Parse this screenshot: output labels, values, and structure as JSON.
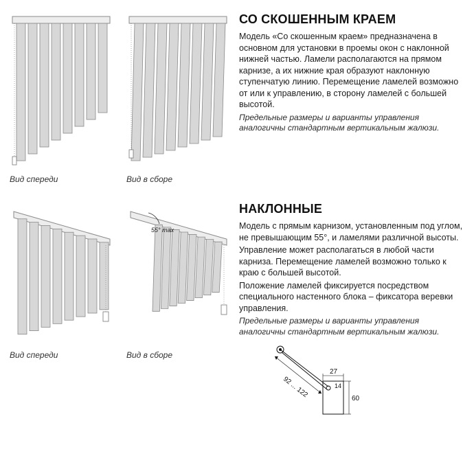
{
  "section1": {
    "heading": "СО СКОШЕННЫМ КРАЕМ",
    "para1": "Модель «Со скошенным краем» предназначена в основном для установки в проемы окон с наклонной нижней частью. Ламели располагаются на прямом карнизе, а их нижние края образуют наклонную ступенчатую линию. Перемещение ламелей возможно от или к управлению, в сторону ламелей с большей высотой.",
    "note": "Предельные размеры и варианты управления аналогичны стандартным вертикальным жалюзи.",
    "cap_front": "Вид спереди",
    "cap_assy": "Вид в сборе",
    "fig": {
      "rail_color": "#ededed",
      "rail_stroke": "#8a8a8a",
      "slat_color": "#d7d7d7",
      "slat_stroke": "#8a8a8a",
      "slat_count": 8,
      "slat_w": 13,
      "slat_gap": 4,
      "heights_front": [
        200,
        190,
        180,
        170,
        160,
        150,
        140,
        130
      ],
      "heights_assy": [
        200,
        195,
        190,
        185,
        180,
        175,
        170,
        165
      ]
    }
  },
  "section2": {
    "heading": "НАКЛОННЫЕ",
    "para1": "Модель с прямым карнизом, установленным под углом, не превышающим 55°, и ламелями различной высоты.",
    "para2": "Управление может располагаться в любой части карниза. Перемещение ламелей возможно только к краю с большей высотой.",
    "para3": "Положение ламелей фиксируется посредством специального настенного блока – фиксатора веревки управления.",
    "note": "Предельные размеры и варианты управления аналогичны стандартным вертикальным жалюзи.",
    "cap_front": "Вид спереди",
    "cap_assy": "Вид в сборе",
    "angle_label": "55° max",
    "fig": {
      "rail_color": "#ededed",
      "rail_stroke": "#8a8a8a",
      "slat_color": "#d7d7d7",
      "slat_stroke": "#8a8a8a",
      "slat_count": 8,
      "slat_w": 13,
      "slat_gap": 4,
      "heights": [
        168,
        158,
        148,
        138,
        128,
        118,
        108,
        98
      ],
      "angle_deg": 16
    },
    "dims": {
      "d_range": "92 ... 122",
      "d27": "27",
      "d14": "14",
      "d60": "60",
      "stroke": "#111"
    }
  }
}
